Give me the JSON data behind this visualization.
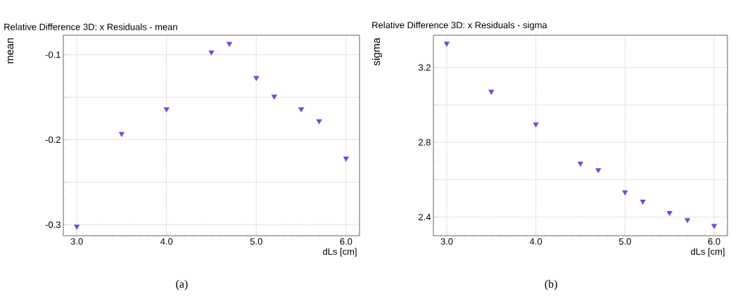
{
  "chart_data": [
    {
      "type": "scatter",
      "title": "Relative Difference 3D: x Residuals - mean",
      "xlabel": "dLs [cm]",
      "ylabel": "mean",
      "marker": "triangle",
      "grid": true,
      "x": [
        3.0,
        3.5,
        4.0,
        4.5,
        4.7,
        5.0,
        5.2,
        5.5,
        5.7,
        6.0
      ],
      "series": [
        {
          "color": "#5555dd",
          "values": [
            -0.302,
            -0.193,
            -0.164,
            -0.097,
            -0.087,
            -0.127,
            -0.149,
            -0.164,
            -0.178,
            -0.222
          ]
        }
      ],
      "xlim": [
        2.85,
        6.15
      ],
      "ylim": [
        -0.313,
        -0.077
      ],
      "xticks": [
        {
          "value": 3,
          "label": "3.0"
        },
        {
          "value": 4,
          "label": "4.0"
        },
        {
          "value": 5,
          "label": "5.0"
        },
        {
          "value": 6,
          "label": "6.0"
        }
      ],
      "yticks": [
        -0.3,
        {
          "value": -0.25,
          "label": null
        },
        -0.2,
        {
          "value": -0.15,
          "label": null
        },
        -0.1
      ],
      "annotations": [
        "(a)"
      ]
    },
    {
      "type": "scatter",
      "title": "Relative Difference 3D: x Residuals - sigma",
      "xlabel": "dLs [cm]",
      "ylabel": "sigma",
      "marker": "triangle",
      "grid": true,
      "x": [
        3.0,
        3.5,
        4.0,
        4.5,
        4.7,
        5.0,
        5.2,
        5.5,
        5.7,
        6.0
      ],
      "series": [
        {
          "color": "#5555dd",
          "values": [
            3.329,
            3.072,
            2.897,
            2.687,
            2.652,
            2.533,
            2.484,
            2.423,
            2.385,
            2.354
          ]
        }
      ],
      "xlim": [
        2.85,
        6.15
      ],
      "ylim": [
        2.3,
        3.373
      ],
      "xticks": [
        {
          "value": 3,
          "label": "3.0"
        },
        {
          "value": 4,
          "label": "4.0"
        },
        {
          "value": 5,
          "label": "5.0"
        },
        {
          "value": 6,
          "label": "6.0"
        }
      ],
      "yticks": [
        2.4,
        {
          "value": 2.6,
          "label": null
        },
        2.8,
        {
          "value": 3.0,
          "label": null
        },
        3.2
      ],
      "annotations": [
        "(b)"
      ]
    }
  ]
}
